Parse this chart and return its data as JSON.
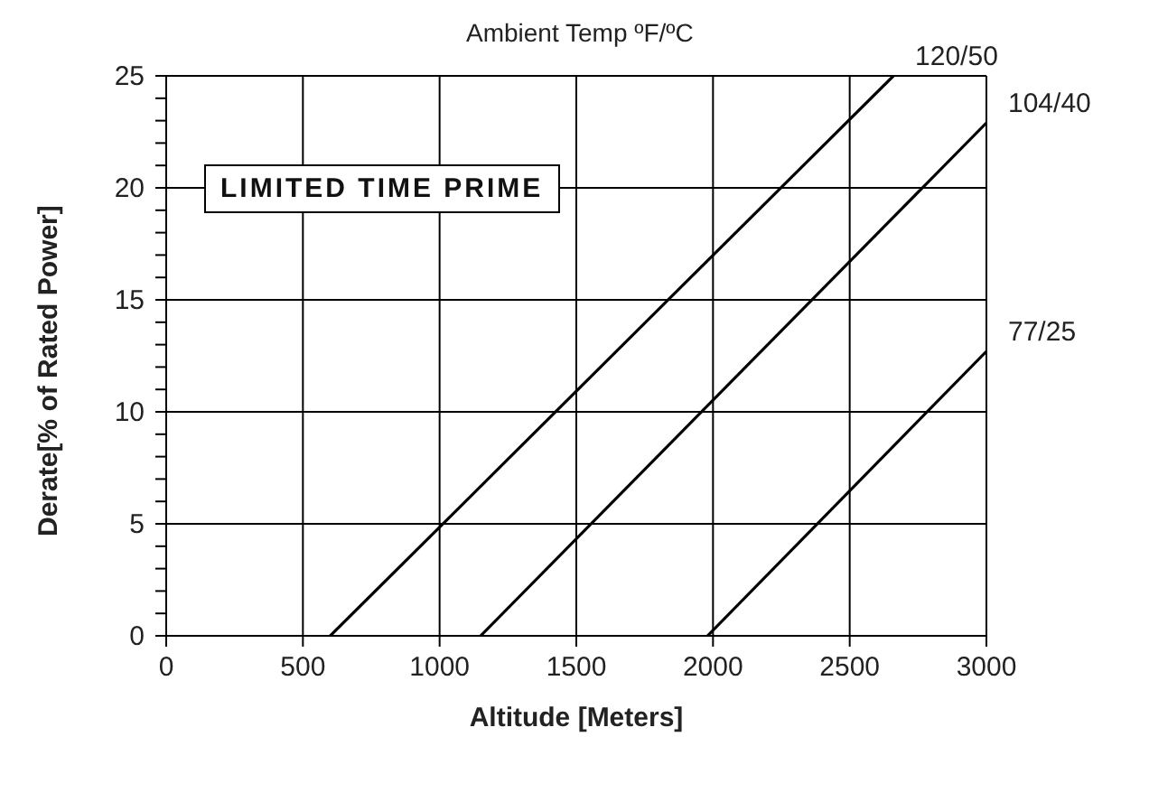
{
  "chart_data": {
    "type": "line",
    "legend_title": "Ambient Temp ºF/ºC",
    "xlabel": "Altitude [Meters]",
    "ylabel": "Derate[% of Rated Power]",
    "annotations": [
      "LIMITED TIME PRIME"
    ],
    "series": [
      {
        "name": "120/50",
        "color": "#000000",
        "x": [
          600,
          2660
        ],
        "values": [
          0,
          25
        ]
      },
      {
        "name": "104/40",
        "color": "#000000",
        "x": [
          1150,
          3000
        ],
        "values": [
          0,
          22.9
        ]
      },
      {
        "name": "77/25",
        "color": "#000000",
        "x": [
          1980,
          3000
        ],
        "values": [
          0,
          12.7
        ]
      }
    ],
    "xlim": [
      0,
      3000
    ],
    "xticks": [
      0,
      500,
      1000,
      1500,
      2000,
      2500,
      3000
    ],
    "ylim": [
      0,
      25
    ],
    "yticks": [
      0,
      {
        "value": 1,
        "label": null
      },
      {
        "value": 2,
        "label": null
      },
      {
        "value": 3,
        "label": null
      },
      {
        "value": 4,
        "label": null
      },
      5,
      {
        "value": 6,
        "label": null
      },
      {
        "value": 7,
        "label": null
      },
      {
        "value": 8,
        "label": null
      },
      {
        "value": 9,
        "label": null
      },
      10,
      {
        "value": 11,
        "label": null
      },
      {
        "value": 12,
        "label": null
      },
      {
        "value": 13,
        "label": null
      },
      {
        "value": 14,
        "label": null
      },
      15,
      {
        "value": 16,
        "label": null
      },
      {
        "value": 17,
        "label": null
      },
      {
        "value": 18,
        "label": null
      },
      {
        "value": 19,
        "label": null
      },
      20,
      {
        "value": 21,
        "label": null
      },
      {
        "value": 22,
        "label": null
      },
      {
        "value": 23,
        "label": null
      },
      {
        "value": 24,
        "label": null
      },
      25
    ],
    "grid": true,
    "marker": "none",
    "line_style": "solid"
  }
}
